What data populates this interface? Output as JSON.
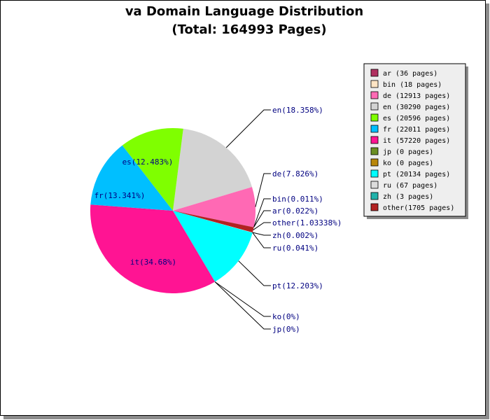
{
  "chart_data": {
    "type": "pie",
    "title": "va Domain Language Distribution",
    "subtitle": "(Total: 164993 Pages)",
    "slices": [
      {
        "key": "en",
        "pages": 30290,
        "label": "en(18.358%)",
        "legend": "en   (30290 pages)",
        "color": "#d3d3d3"
      },
      {
        "key": "de",
        "pages": 12913,
        "label": "de(7.826%)",
        "legend": "de   (12913 pages)",
        "color": "#ff69b4"
      },
      {
        "key": "bin",
        "pages": 18,
        "label": "bin(0.011%)",
        "legend": "bin  (18 pages)",
        "color": "#ffe4c4"
      },
      {
        "key": "ar",
        "pages": 36,
        "label": "ar(0.022%)",
        "legend": "ar   (36 pages)",
        "color": "#b03060"
      },
      {
        "key": "other",
        "pages": 1705,
        "label": "other(1.03338%)",
        "legend": "other(1705 pages)",
        "color": "#b22222"
      },
      {
        "key": "zh",
        "pages": 3,
        "label": "zh(0.002%)",
        "legend": "zh   (3 pages)",
        "color": "#20b2aa"
      },
      {
        "key": "ru",
        "pages": 67,
        "label": "ru(0.041%)",
        "legend": "ru   (67 pages)",
        "color": "#dcdcdc"
      },
      {
        "key": "pt",
        "pages": 20134,
        "label": "pt(12.203%)",
        "legend": "pt   (20134 pages)",
        "color": "#00ffff"
      },
      {
        "key": "ko",
        "pages": 0,
        "label": "ko(0%)",
        "legend": "ko   (0 pages)",
        "color": "#b8860b"
      },
      {
        "key": "jp",
        "pages": 0,
        "label": "jp(0%)",
        "legend": "jp   (0 pages)",
        "color": "#6b8e23"
      },
      {
        "key": "it",
        "pages": 57220,
        "label": "it(34.68%)",
        "legend": "it   (57220 pages)",
        "color": "#ff1493"
      },
      {
        "key": "fr",
        "pages": 22011,
        "label": "fr(13.341%)",
        "legend": "fr   (22011 pages)",
        "color": "#00bfff"
      },
      {
        "key": "es",
        "pages": 20596,
        "label": "es(12.483%)",
        "legend": "es   (20596 pages)",
        "color": "#7fff00"
      }
    ],
    "legend_order": [
      "ar",
      "bin",
      "de",
      "en",
      "es",
      "fr",
      "it",
      "jp",
      "ko",
      "pt",
      "ru",
      "zh",
      "other"
    ],
    "legend_placement": "right"
  }
}
